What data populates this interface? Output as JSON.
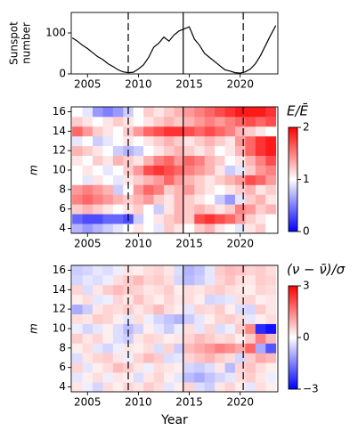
{
  "chart_data": [
    {
      "type": "line",
      "ylabel": [
        "Sunspot",
        "number"
      ],
      "color": "#000000",
      "x": [
        2003.5,
        2004,
        2004.5,
        2005,
        2005.5,
        2006,
        2006.5,
        2007,
        2007.5,
        2008,
        2008.5,
        2009,
        2009.5,
        2010,
        2010.5,
        2011,
        2011.5,
        2012,
        2012.5,
        2013,
        2013.5,
        2014,
        2014.5,
        2015,
        2015.5,
        2016,
        2016.5,
        2017,
        2017.5,
        2018,
        2018.5,
        2019,
        2019.5,
        2020,
        2020.5,
        2021,
        2021.5,
        2022,
        2022.5,
        2023,
        2023.5
      ],
      "values": [
        88,
        80,
        70,
        62,
        52,
        42,
        35,
        25,
        18,
        10,
        5,
        3,
        4,
        12,
        22,
        40,
        65,
        75,
        90,
        80,
        95,
        105,
        110,
        115,
        85,
        70,
        50,
        40,
        30,
        20,
        10,
        7,
        3,
        2,
        5,
        12,
        25,
        45,
        70,
        95,
        118
      ],
      "xlim": [
        2003.4,
        2023.7
      ],
      "xticks": [
        2005,
        2010,
        2015,
        2020
      ],
      "ylim": [
        0,
        150
      ],
      "yticks": [
        0,
        100
      ],
      "vlines": [
        {
          "x": 2009.0,
          "style": "dashed"
        },
        {
          "x": 2014.4,
          "style": "solid"
        },
        {
          "x": 2020.3,
          "style": "dashed"
        }
      ]
    },
    {
      "type": "heatmap",
      "ylabel": "m",
      "colormap": "bwr",
      "colorbar_label": "E/Ē",
      "x": [
        2004,
        2005,
        2006,
        2007,
        2008,
        2009,
        2010,
        2011,
        2012,
        2013,
        2014,
        2015,
        2016,
        2017,
        2018,
        2019,
        2020,
        2021,
        2022,
        2023
      ],
      "y": [
        4,
        5,
        6,
        7,
        8,
        9,
        10,
        11,
        12,
        13,
        14,
        15,
        16
      ],
      "z": [
        [
          0.7,
          0.6,
          0.7,
          0.8,
          0.9,
          1.0,
          1.1,
          1.0,
          0.9,
          1.2,
          1.1,
          1.0,
          1.2,
          1.3,
          1.1,
          1.0,
          0.9,
          1.1,
          1.2,
          1.0
        ],
        [
          0.4,
          0.3,
          0.3,
          0.4,
          0.4,
          0.3,
          0.8,
          1.0,
          1.1,
          1.2,
          1.3,
          1.2,
          1.7,
          1.8,
          1.7,
          1.6,
          1.4,
          1.2,
          1.1,
          1.0
        ],
        [
          1.2,
          1.3,
          1.2,
          1.1,
          1.0,
          1.1,
          1.2,
          1.0,
          0.8,
          1.1,
          1.3,
          1.2,
          1.3,
          1.2,
          1.1,
          1.2,
          1.5,
          1.4,
          1.2,
          1.3
        ],
        [
          1.5,
          1.6,
          1.5,
          1.4,
          1.3,
          1.2,
          1.3,
          1.4,
          1.2,
          1.1,
          1.3,
          1.2,
          1.1,
          1.0,
          0.8,
          0.6,
          0.9,
          1.2,
          1.3,
          1.1
        ],
        [
          1.4,
          1.5,
          1.4,
          1.3,
          0.8,
          1.0,
          1.4,
          1.6,
          1.5,
          1.2,
          1.3,
          1.4,
          1.2,
          1.1,
          1.0,
          1.1,
          1.2,
          1.3,
          1.1,
          1.2
        ],
        [
          1.0,
          0.9,
          1.1,
          1.0,
          0.9,
          1.1,
          1.2,
          1.3,
          1.4,
          1.6,
          1.4,
          1.3,
          1.2,
          1.1,
          1.2,
          1.3,
          1.4,
          1.7,
          1.6,
          1.4
        ],
        [
          1.0,
          1.1,
          1.0,
          0.9,
          1.0,
          1.2,
          1.4,
          1.7,
          1.8,
          1.7,
          1.6,
          1.5,
          1.4,
          1.3,
          1.1,
          0.8,
          0.9,
          1.2,
          1.4,
          1.5
        ],
        [
          1.1,
          1.0,
          1.2,
          1.1,
          1.3,
          1.2,
          1.1,
          1.3,
          1.5,
          1.6,
          1.4,
          1.6,
          1.5,
          1.3,
          1.2,
          1.0,
          1.1,
          1.3,
          1.5,
          1.7
        ],
        [
          1.3,
          1.2,
          1.1,
          1.0,
          0.8,
          0.7,
          0.8,
          1.0,
          1.1,
          1.2,
          1.3,
          1.2,
          1.1,
          1.2,
          1.0,
          1.1,
          1.3,
          1.6,
          1.8,
          1.9
        ],
        [
          0.9,
          1.0,
          0.8,
          0.9,
          1.0,
          1.1,
          1.0,
          1.1,
          1.2,
          1.3,
          1.2,
          1.1,
          1.2,
          1.3,
          1.2,
          1.1,
          1.4,
          1.6,
          1.8,
          1.9
        ],
        [
          1.6,
          1.4,
          1.2,
          1.1,
          1.0,
          1.2,
          1.4,
          1.6,
          1.7,
          1.8,
          1.8,
          1.7,
          1.6,
          1.7,
          1.6,
          1.5,
          1.3,
          1.2,
          1.1,
          1.0
        ],
        [
          1.2,
          1.1,
          1.0,
          1.1,
          1.2,
          1.1,
          1.0,
          1.1,
          1.2,
          1.3,
          1.2,
          1.3,
          1.4,
          1.5,
          1.4,
          1.5,
          1.6,
          1.7,
          1.6,
          1.7
        ],
        [
          1.0,
          0.9,
          0.6,
          0.5,
          0.6,
          0.8,
          1.0,
          1.2,
          1.1,
          1.2,
          1.3,
          1.4,
          1.5,
          1.6,
          1.7,
          1.8,
          1.9,
          1.9,
          1.9,
          1.8
        ]
      ],
      "zlim": [
        0,
        2
      ],
      "zticks": [
        0,
        1,
        2
      ],
      "xlim": [
        2003.4,
        2023.7
      ],
      "xticks": [
        2005,
        2010,
        2015,
        2020
      ],
      "ylim": [
        3.5,
        16.5
      ],
      "yticks": [
        4,
        6,
        8,
        10,
        12,
        14,
        16
      ],
      "vlines": [
        {
          "x": 2009.0,
          "style": "dashed"
        },
        {
          "x": 2014.4,
          "style": "solid"
        },
        {
          "x": 2020.3,
          "style": "dashed"
        }
      ]
    },
    {
      "type": "heatmap",
      "ylabel": "m",
      "xlabel": "Year",
      "colormap": "bwr",
      "colorbar_label": "(ν − ν̄)/σ",
      "x": [
        2004,
        2005,
        2006,
        2007,
        2008,
        2009,
        2010,
        2011,
        2012,
        2013,
        2014,
        2015,
        2016,
        2017,
        2018,
        2019,
        2020,
        2021,
        2022,
        2023
      ],
      "y": [
        4,
        5,
        6,
        7,
        8,
        9,
        10,
        11,
        12,
        13,
        14,
        15,
        16
      ],
      "z": [
        [
          0.3,
          -0.2,
          -0.5,
          0.4,
          0.2,
          0.5,
          0.3,
          0.6,
          0.4,
          -0.3,
          0.2,
          0.5,
          -0.4,
          -0.6,
          0.3,
          0.5,
          0.2,
          -0.3,
          0.4,
          0.2
        ],
        [
          -0.3,
          0.2,
          0.4,
          -0.2,
          0.3,
          0.2,
          -0.4,
          0.3,
          0.5,
          0.2,
          -0.3,
          -0.8,
          -1.0,
          -0.7,
          -0.5,
          -0.3,
          0.4,
          0.6,
          0.3,
          -0.2
        ],
        [
          0.5,
          -0.3,
          0.2,
          0.4,
          0.8,
          0.6,
          0.3,
          -0.2,
          0.4,
          0.3,
          0.2,
          -0.5,
          -0.6,
          -0.4,
          0.3,
          -0.8,
          0.5,
          0.7,
          0.4,
          0.2
        ],
        [
          -0.4,
          0.3,
          0.5,
          0.6,
          0.3,
          -0.2,
          0.5,
          0.8,
          0.6,
          -0.4,
          -0.3,
          0.5,
          0.7,
          0.9,
          0.6,
          0.4,
          -0.5,
          0.6,
          1.0,
          0.8
        ],
        [
          0.2,
          0.4,
          -0.3,
          -0.5,
          -0.2,
          0.3,
          0.2,
          0.4,
          -0.4,
          0.5,
          -0.6,
          0.8,
          1.0,
          1.2,
          1.5,
          1.3,
          1.0,
          1.8,
          -1.0,
          -2.0
        ],
        [
          0.6,
          0.3,
          0.5,
          0.2,
          -0.4,
          -0.6,
          0.3,
          0.5,
          0.4,
          0.2,
          0.3,
          0.5,
          0.8,
          0.6,
          0.4,
          0.5,
          0.2,
          0.6,
          1.5,
          0.8
        ],
        [
          -0.2,
          -0.5,
          -0.3,
          0.2,
          -0.4,
          -0.8,
          -0.5,
          0.2,
          -0.3,
          -0.6,
          -0.2,
          0.4,
          -0.3,
          0.5,
          -0.4,
          -0.2,
          0.6,
          1.4,
          -2.5,
          -2.8
        ],
        [
          0.4,
          0.3,
          0.6,
          0.5,
          0.2,
          -0.3,
          0.4,
          -0.2,
          -0.5,
          -0.7,
          -0.9,
          -0.6,
          -0.3,
          0.2,
          0.5,
          0.6,
          0.4,
          -0.3,
          0.2,
          0.4
        ],
        [
          -1.0,
          -0.6,
          0.3,
          0.5,
          0.4,
          0.6,
          0.3,
          0.5,
          0.8,
          0.4,
          0.2,
          -0.3,
          0.5,
          0.4,
          0.6,
          0.2,
          -0.4,
          -0.5,
          0.6,
          0.3
        ],
        [
          0.2,
          0.4,
          -0.3,
          -0.2,
          0.5,
          0.3,
          0.7,
          0.4,
          0.2,
          0.5,
          0.3,
          0.4,
          0.2,
          -0.5,
          -0.4,
          -0.3,
          0.4,
          0.5,
          0.2,
          0.3
        ],
        [
          0.5,
          -0.4,
          0.3,
          0.6,
          0.8,
          0.6,
          0.5,
          0.3,
          0.4,
          0.6,
          0.2,
          0.4,
          0.3,
          0.5,
          0.6,
          0.4,
          0.3,
          0.2,
          0.5,
          0.4
        ],
        [
          -0.5,
          -0.3,
          -0.4,
          -0.2,
          0.4,
          0.6,
          0.8,
          0.5,
          0.6,
          0.4,
          -0.5,
          -0.8,
          -0.6,
          -0.3,
          0.5,
          0.7,
          0.4,
          0.3,
          0.6,
          0.5
        ],
        [
          -0.6,
          -0.5,
          -0.3,
          -0.4,
          -0.2,
          0.3,
          0.2,
          0.4,
          0.5,
          0.3,
          -0.4,
          -0.9,
          -0.7,
          -0.3,
          0.6,
          0.8,
          0.7,
          0.5,
          0.6,
          0.4
        ]
      ],
      "zlim": [
        -3,
        3
      ],
      "zticks": [
        {
          "value": -3,
          "label": "−3"
        },
        0,
        3
      ],
      "xlim": [
        2003.4,
        2023.7
      ],
      "xticks": [
        2005,
        2010,
        2015,
        2020
      ],
      "ylim": [
        3.5,
        16.5
      ],
      "yticks": [
        4,
        6,
        8,
        10,
        12,
        14,
        16
      ],
      "vlines": [
        {
          "x": 2009.0,
          "style": "dashed"
        },
        {
          "x": 2014.4,
          "style": "solid"
        },
        {
          "x": 2020.3,
          "style": "dashed"
        }
      ]
    }
  ]
}
